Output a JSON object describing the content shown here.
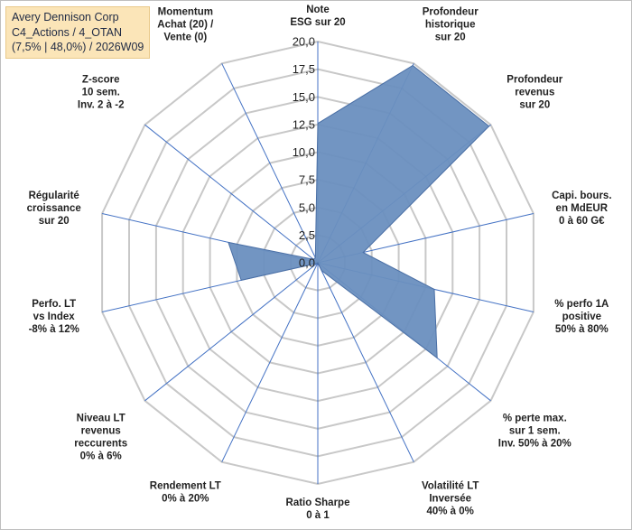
{
  "header": {
    "line1": "Avery Dennison Corp",
    "line2": "C4_Actions / 4_OTAN",
    "line3": "(7,5% | 48,0%) / 2026W09"
  },
  "chart_data": {
    "type": "radar",
    "title": "Avery Dennison Corp",
    "rmin": 0,
    "rmax": 20,
    "ticks": [
      "0,0",
      "2,5",
      "5,0",
      "7,5",
      "10,0",
      "12,5",
      "15,0",
      "17,5",
      "20,0"
    ],
    "axes": [
      {
        "label": [
          "Note",
          "ESG sur 20"
        ],
        "value": 12.6
      },
      {
        "label": [
          "Profondeur",
          "historique",
          "sur 20"
        ],
        "value": 19.8
      },
      {
        "label": [
          "Profondeur",
          "revenus",
          "sur 20"
        ],
        "value": 19.8
      },
      {
        "label": [
          "Capi. bours.",
          "en MdEUR",
          "0 à 60 G€"
        ],
        "value": 4.2
      },
      {
        "label": [
          "% perfo 1A",
          "positive",
          "50% à 80%"
        ],
        "value": 10.8
      },
      {
        "label": [
          "% perte max.",
          "sur 1 sem.",
          "Inv. 50% à 20%"
        ],
        "value": 13.8
      },
      {
        "label": [
          "Volatilité LT",
          "Inversée",
          "40% à 0%"
        ],
        "value": 0.8
      },
      {
        "label": [
          "Ratio Sharpe",
          "0 à 1"
        ],
        "value": 0.0
      },
      {
        "label": [
          "Rendement LT",
          "0% à 20%"
        ],
        "value": 0.1
      },
      {
        "label": [
          "Niveau LT",
          "revenus",
          "reccurents",
          "0% à 6%"
        ],
        "value": 0.1
      },
      {
        "label": [
          "Perfo. LT",
          "vs Index",
          "-8% à 12%"
        ],
        "value": 7.1
      },
      {
        "label": [
          "Régularité",
          "croissance",
          "sur 20"
        ],
        "value": 8.3
      },
      {
        "label": [
          "Z-score",
          "10 sem.",
          "Inv. 2 à -2"
        ],
        "value": 0.5
      },
      {
        "label": [
          "Momentum",
          "Achat (20) /",
          "Vente (0)"
        ],
        "value": 0.5
      }
    ],
    "colors": {
      "fill": "#6a8fbf",
      "stroke": "#4a6fa5",
      "grid": "#c8c8c8",
      "spoke": "#4472c4"
    }
  }
}
